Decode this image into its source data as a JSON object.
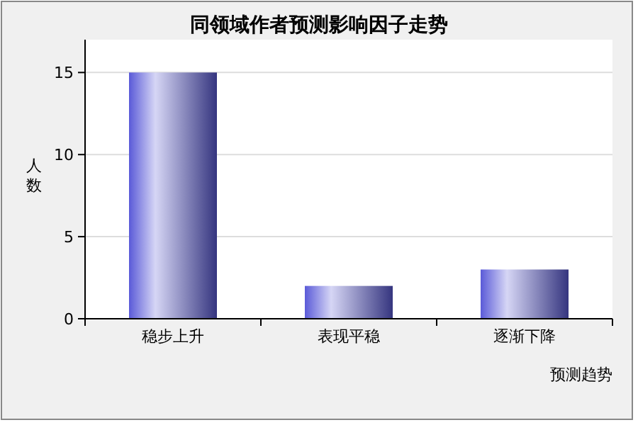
{
  "chart_data": {
    "type": "bar",
    "title": "同领域作者预测影响因子走势",
    "xlabel": "预测趋势",
    "ylabel": "人数",
    "categories": [
      "稳步上升",
      "表现平稳",
      "逐渐下降"
    ],
    "values": [
      15,
      2,
      3
    ],
    "color": "#5a5ad8",
    "ylim": [
      0,
      17
    ],
    "yticks": [
      0,
      5,
      10,
      15
    ],
    "grid": "y"
  }
}
